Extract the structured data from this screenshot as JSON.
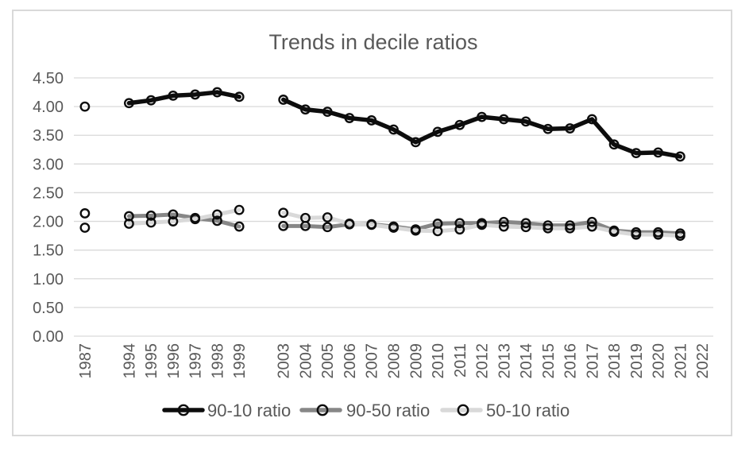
{
  "chart_data": {
    "type": "line",
    "title": "Trends in decile ratios",
    "x_categories": [
      "1987",
      "",
      "1994",
      "1995",
      "1996",
      "1997",
      "1998",
      "1999",
      "",
      "2003",
      "2004",
      "2005",
      "2006",
      "2007",
      "2008",
      "2009",
      "2010",
      "2011",
      "2012",
      "2013",
      "2014",
      "2015",
      "2016",
      "2017",
      "2018",
      "2019",
      "2020",
      "2021",
      "2022"
    ],
    "y_tick_labels": [
      "4.50",
      "4.00",
      "3.50",
      "3.00",
      "2.50",
      "2.00",
      "1.50",
      "1.00",
      "0.50",
      "0.00"
    ],
    "ylim": [
      0,
      4.5
    ],
    "y_tick_step": 0.5,
    "grid": true,
    "legend_position": "bottom",
    "marker": {
      "shape": "open-circle",
      "stroke": "#0d0d0d"
    },
    "text_color": "#595959",
    "gridline_color": "#d9d9d9",
    "series": [
      {
        "name": "90-10 ratio",
        "color": "#0d0d0d",
        "values": [
          4.0,
          null,
          4.06,
          4.11,
          4.19,
          4.21,
          4.25,
          4.17,
          null,
          4.12,
          3.95,
          3.91,
          3.8,
          3.76,
          3.6,
          3.38,
          3.56,
          3.68,
          3.82,
          3.78,
          3.74,
          3.61,
          3.62,
          3.78,
          3.34,
          3.19,
          3.2,
          3.13,
          null
        ]
      },
      {
        "name": "90-50 ratio",
        "color": "#878787",
        "values": [
          1.89,
          null,
          2.09,
          2.1,
          2.12,
          2.06,
          2.01,
          1.91,
          null,
          1.92,
          1.92,
          1.9,
          1.95,
          1.95,
          1.91,
          1.86,
          1.96,
          1.97,
          1.97,
          1.99,
          1.97,
          1.93,
          1.93,
          1.99,
          1.84,
          1.81,
          1.81,
          1.79,
          null
        ]
      },
      {
        "name": "50-10 ratio",
        "color": "#d9d9d9",
        "values": [
          2.14,
          null,
          1.96,
          1.98,
          2.0,
          2.04,
          2.12,
          2.2,
          null,
          2.15,
          2.06,
          2.07,
          1.96,
          1.94,
          1.89,
          1.84,
          1.83,
          1.86,
          1.94,
          1.91,
          1.9,
          1.88,
          1.88,
          1.91,
          1.82,
          1.77,
          1.77,
          1.75,
          null
        ]
      }
    ]
  }
}
